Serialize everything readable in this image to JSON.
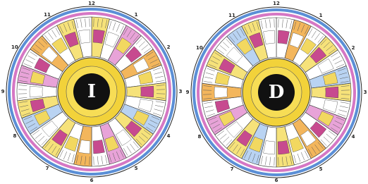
{
  "charts": [
    {
      "letter": "I",
      "clock_numbers": [
        "12",
        "1",
        "2",
        "3",
        "4",
        "5",
        "6",
        "7",
        "8",
        "9",
        "10",
        "11"
      ]
    },
    {
      "letter": "D",
      "clock_numbers": [
        "12",
        "1",
        "2",
        "3",
        "4",
        "5",
        "6",
        "7",
        "8",
        "9",
        "10",
        "11"
      ]
    }
  ]
}
